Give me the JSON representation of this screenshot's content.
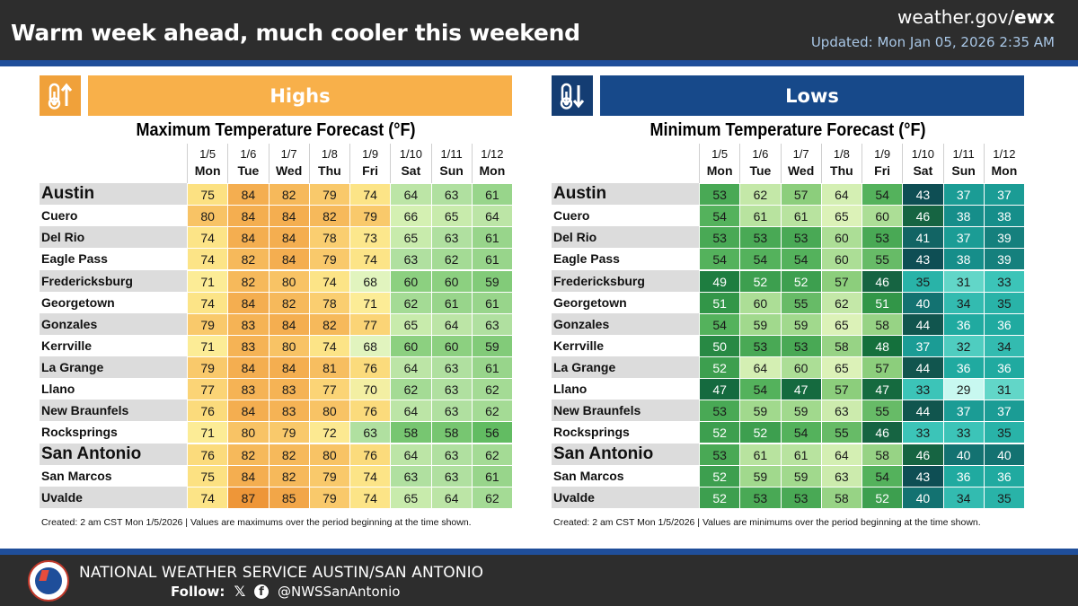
{
  "header": {
    "title": "Warm week ahead, much cooler this weekend",
    "site_prefix": "weather.gov/",
    "site_bold": "ewx",
    "updated": "Updated: Mon Jan 05, 2026 2:35 AM"
  },
  "days": [
    {
      "date": "1/5",
      "dow": "Mon"
    },
    {
      "date": "1/6",
      "dow": "Tue"
    },
    {
      "date": "1/7",
      "dow": "Wed"
    },
    {
      "date": "1/8",
      "dow": "Thu"
    },
    {
      "date": "1/9",
      "dow": "Fri"
    },
    {
      "date": "1/10",
      "dow": "Sat"
    },
    {
      "date": "1/11",
      "dow": "Sun"
    },
    {
      "date": "1/12",
      "dow": "Mon"
    }
  ],
  "cities": [
    "Austin",
    "Cuero",
    "Del Rio",
    "Eagle Pass",
    "Fredericksburg",
    "Georgetown",
    "Gonzales",
    "Kerrville",
    "La Grange",
    "Llano",
    "New Braunfels",
    "Rocksprings",
    "San Antonio",
    "San Marcos",
    "Uvalde"
  ],
  "highs": {
    "banner": "Highs",
    "icon": "thermometer-up-icon",
    "title": "Maximum Temperature Forecast (°F)",
    "footnote": "Created: 2 am CST Mon 1/5/2026  |  Values are maximums over the period beginning at the time shown.",
    "values": [
      [
        75,
        84,
        82,
        79,
        74,
        64,
        63,
        61
      ],
      [
        80,
        84,
        84,
        82,
        79,
        66,
        65,
        64
      ],
      [
        74,
        84,
        84,
        78,
        73,
        65,
        63,
        61
      ],
      [
        74,
        82,
        84,
        79,
        74,
        63,
        62,
        61
      ],
      [
        71,
        82,
        80,
        74,
        68,
        60,
        60,
        59
      ],
      [
        74,
        84,
        82,
        78,
        71,
        62,
        61,
        61
      ],
      [
        79,
        83,
        84,
        82,
        77,
        65,
        64,
        63
      ],
      [
        71,
        83,
        80,
        74,
        68,
        60,
        60,
        59
      ],
      [
        79,
        84,
        84,
        81,
        76,
        64,
        63,
        61
      ],
      [
        77,
        83,
        83,
        77,
        70,
        62,
        63,
        62
      ],
      [
        76,
        84,
        83,
        80,
        76,
        64,
        63,
        62
      ],
      [
        71,
        80,
        79,
        72,
        63,
        58,
        58,
        56
      ],
      [
        76,
        82,
        82,
        80,
        76,
        64,
        63,
        62
      ],
      [
        75,
        84,
        82,
        79,
        74,
        63,
        63,
        61
      ],
      [
        74,
        87,
        85,
        79,
        74,
        65,
        64,
        62
      ]
    ]
  },
  "lows": {
    "banner": "Lows",
    "icon": "thermometer-down-icon",
    "title": "Minimum Temperature Forecast (°F)",
    "footnote": "Created: 2 am CST Mon 1/5/2026  |  Values are minimums over the period beginning at the time shown.",
    "values": [
      [
        53,
        62,
        57,
        64,
        54,
        43,
        37,
        37
      ],
      [
        54,
        61,
        61,
        65,
        60,
        46,
        38,
        38
      ],
      [
        53,
        53,
        53,
        60,
        53,
        41,
        37,
        39
      ],
      [
        54,
        54,
        54,
        60,
        55,
        43,
        38,
        39
      ],
      [
        49,
        52,
        52,
        57,
        46,
        35,
        31,
        33
      ],
      [
        51,
        60,
        55,
        62,
        51,
        40,
        34,
        35
      ],
      [
        54,
        59,
        59,
        65,
        58,
        44,
        36,
        36
      ],
      [
        50,
        53,
        53,
        58,
        48,
        37,
        32,
        34
      ],
      [
        52,
        64,
        60,
        65,
        57,
        44,
        36,
        36
      ],
      [
        47,
        54,
        47,
        57,
        47,
        33,
        29,
        31
      ],
      [
        53,
        59,
        59,
        63,
        55,
        44,
        37,
        37
      ],
      [
        52,
        52,
        54,
        55,
        46,
        33,
        33,
        35
      ],
      [
        53,
        61,
        61,
        64,
        58,
        46,
        40,
        40
      ],
      [
        52,
        59,
        59,
        63,
        54,
        43,
        36,
        36
      ],
      [
        52,
        53,
        53,
        58,
        52,
        40,
        34,
        35
      ]
    ]
  },
  "footer": {
    "office": "NATIONAL WEATHER SERVICE AUSTIN/SAN ANTONIO",
    "follow": "Follow:",
    "handle": "@NWSSanAntonio"
  },
  "colors": {
    "header_bg": "#2d2d2d",
    "accent_blue": "#1f4e9a",
    "highs_orange": "#f8b04a",
    "lows_blue": "#17498a"
  }
}
